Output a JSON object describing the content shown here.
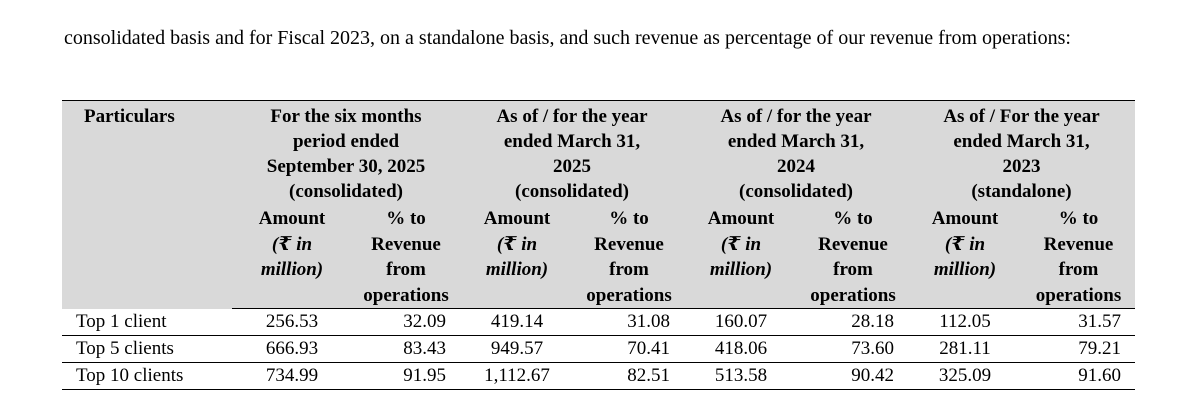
{
  "intro_text": "consolidated basis and for Fiscal 2023, on a standalone basis, and such revenue as percentage of our revenue from operations:",
  "table": {
    "particulars_header": "Particulars",
    "period_headers": [
      {
        "line1": "For the six months",
        "line2": "period ended",
        "line3": "September 30, 2025",
        "line4": "(consolidated)"
      },
      {
        "line1": "As of / for the year",
        "line2": "ended March 31,",
        "line3": "2025",
        "line4": "(consolidated)"
      },
      {
        "line1": "As of / for the year",
        "line2": "ended March 31,",
        "line3": "2024",
        "line4": "(consolidated)"
      },
      {
        "line1": "As of / For the year",
        "line2": "ended March 31,",
        "line3": "2023",
        "line4": "(standalone)"
      }
    ],
    "amount_header": {
      "line1": "Amount",
      "line2": "(₹ in",
      "line3": "million)"
    },
    "pct_header": {
      "line1": "% to",
      "line2": "Revenue",
      "line3": "from",
      "line4": "operations"
    },
    "rows": [
      {
        "label": "Top 1 client",
        "values": [
          "256.53",
          "32.09",
          "419.14",
          "31.08",
          "160.07",
          "28.18",
          "112.05",
          "31.57"
        ]
      },
      {
        "label": "Top 5 clients",
        "values": [
          "666.93",
          "83.43",
          "949.57",
          "70.41",
          "418.06",
          "73.60",
          "281.11",
          "79.21"
        ]
      },
      {
        "label": "Top 10 clients",
        "values": [
          "734.99",
          "91.95",
          "1,112.67",
          "82.51",
          "513.58",
          "90.42",
          "325.09",
          "91.60"
        ]
      }
    ]
  }
}
